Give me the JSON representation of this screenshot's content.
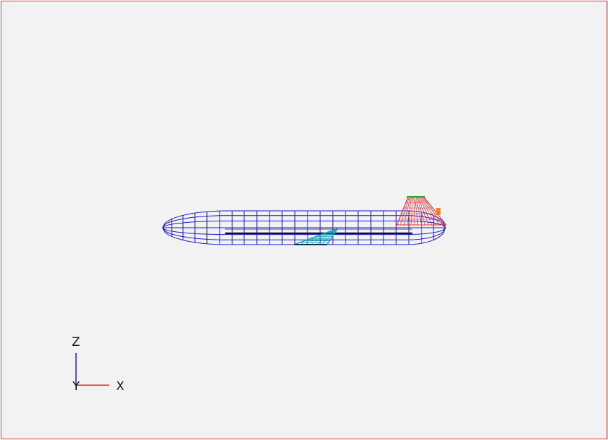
{
  "viewport": {
    "background": "#f2f2f2",
    "border_color": "#e03030"
  },
  "model": {
    "fuselage_color": "#1a1acc",
    "keel_color": "#101040",
    "wing_color": "#20a0b0",
    "tail_color": "#e82020",
    "tail_tip_color": "#22aa22",
    "tail_marker_color": "#ff7a1a"
  },
  "axes": {
    "z_label": "Z",
    "y_label": "Y",
    "x_label": "X",
    "z_color": "#1a1acc",
    "x_color": "#e82020"
  }
}
